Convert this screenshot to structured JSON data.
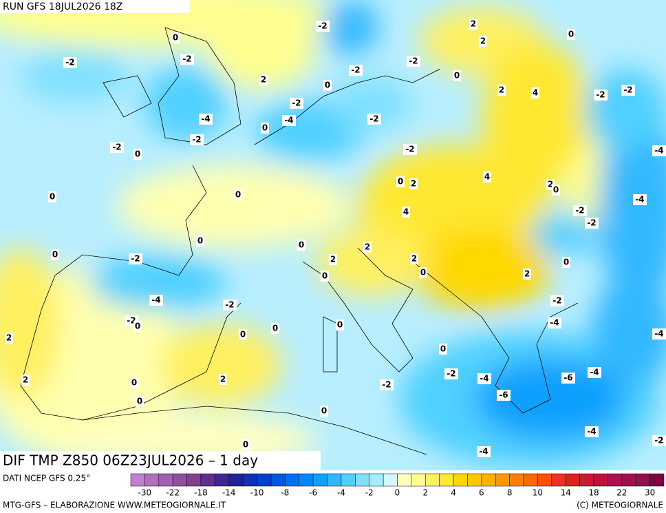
{
  "header": {
    "run": "RUN GFS 18JUL2026 18Z"
  },
  "map": {
    "title": "DIF TMP Z850 06Z23JUL2026 – 1 day",
    "contour_labels": [
      "-2",
      "-2",
      "0",
      "-2",
      "2",
      "2",
      "0",
      "-2",
      "-2",
      "0",
      "2",
      "0",
      "2",
      "4",
      "-2",
      "-2",
      "-2",
      "-4",
      "-4",
      "-2",
      "0",
      "-2",
      "-2",
      "0",
      "-2",
      "-4",
      "0",
      "2",
      "4",
      "2",
      "0",
      "-4",
      "0",
      "0",
      "4",
      "-2",
      "-2",
      "0",
      "0",
      "2",
      "0",
      "-2",
      "2",
      "2",
      "0",
      "0",
      "2",
      "0",
      "-4",
      "-2",
      "-2",
      "-2",
      "0",
      "0",
      "0",
      "-4",
      "2",
      "0",
      "-4",
      "0",
      "-2",
      "-4",
      "-6",
      "-4",
      "2",
      "0",
      "2",
      "-2",
      "-6",
      "0",
      "0",
      "-4",
      "-2",
      "0",
      "-4"
    ]
  },
  "colorbar": {
    "source": "DATI NCEP GFS 0.25°",
    "labels": [
      "-30",
      "-22",
      "-18",
      "-14",
      "-10",
      "-8",
      "-6",
      "-4",
      "-2",
      "0",
      "2",
      "4",
      "6",
      "8",
      "10",
      "14",
      "18",
      "22",
      "30"
    ],
    "colors": [
      "#c080d0",
      "#b070c0",
      "#a060b0",
      "#9050a0",
      "#804090",
      "#603090",
      "#402890",
      "#2020a0",
      "#1030b8",
      "#0040d0",
      "#0058e0",
      "#0070f0",
      "#0088f8",
      "#10a0ff",
      "#30b8ff",
      "#50d0ff",
      "#80e0ff",
      "#a8ecff",
      "#d0f8ff",
      "#ffffc0",
      "#ffff90",
      "#fff060",
      "#ffe830",
      "#ffd800",
      "#ffc800",
      "#ffb000",
      "#ff9800",
      "#ff8000",
      "#ff6800",
      "#ff5000",
      "#f03020",
      "#e02020",
      "#d01830",
      "#c01040",
      "#b01050",
      "#a01050",
      "#901050",
      "#800040"
    ]
  },
  "footer": {
    "left": "MTG-GFS – ELABORAZIONE WWW.METEOGIORNALE.IT",
    "right": "(C) METEOGIORNALE"
  }
}
